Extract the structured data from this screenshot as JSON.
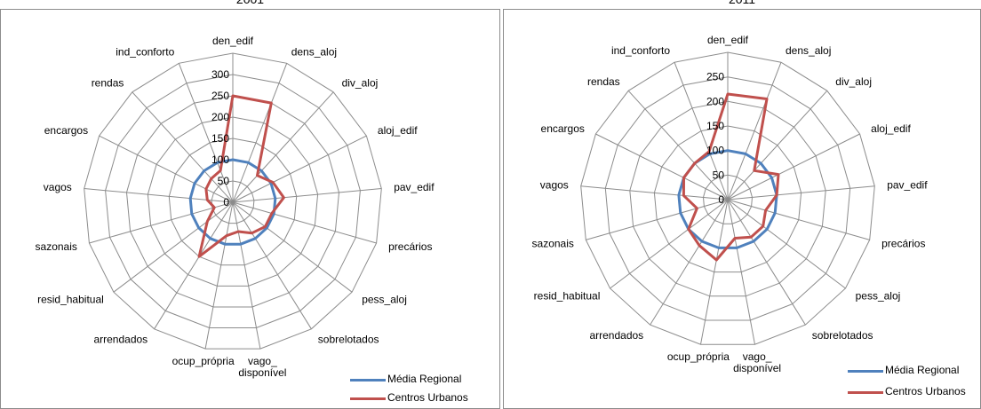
{
  "chart_data": [
    {
      "type": "radar",
      "title": "2001",
      "categories": [
        "den_edif",
        "dens_aloj",
        "div_aloj",
        "aloj_edif",
        "pav_edif",
        "precários",
        "pess_aloj",
        "sobrelotados",
        "vago_ disponível",
        "ocup_própria",
        "arrendados",
        "resid_habitual",
        "sazonais",
        "vagos",
        "encargos",
        "rendas",
        "ind_conforto"
      ],
      "ticks": [
        "0",
        "50",
        "100",
        "150",
        "200",
        "250",
        "300"
      ],
      "rmax": 300,
      "series": [
        {
          "name": "Média Regional",
          "color": "#4f81bd",
          "values": [
            100,
            100,
            100,
            100,
            100,
            100,
            100,
            100,
            100,
            100,
            100,
            100,
            100,
            100,
            100,
            100,
            100
          ]
        },
        {
          "name": "Centros Urbanos",
          "color": "#c0504d",
          "values": [
            250,
            250,
            85,
            105,
            120,
            95,
            95,
            85,
            70,
            80,
            150,
            75,
            45,
            60,
            70,
            75,
            80
          ]
        }
      ],
      "legend_position": "bottom-right"
    },
    {
      "type": "radar",
      "title": "2011",
      "categories": [
        "den_edif",
        "dens_aloj",
        "div_aloj",
        "aloj_edif",
        "pav_edif",
        "precários",
        "pess_aloj",
        "sobrelotados",
        "vago_ disponível",
        "ocup_própria",
        "arrendados",
        "resid_habitual",
        "sazonais",
        "vagos",
        "encargos",
        "rendas",
        "ind_conforto"
      ],
      "ticks": [
        "0",
        "50",
        "100",
        "150",
        "200",
        "250"
      ],
      "rmax": 250,
      "series": [
        {
          "name": "Média Regional",
          "color": "#4f81bd",
          "values": [
            100,
            100,
            100,
            100,
            100,
            100,
            100,
            100,
            100,
            100,
            100,
            100,
            100,
            100,
            100,
            100,
            100
          ]
        },
        {
          "name": "Centros Urbanos",
          "color": "#c0504d",
          "values": [
            215,
            220,
            80,
            115,
            100,
            80,
            90,
            90,
            80,
            125,
            110,
            100,
            65,
            90,
            100,
            100,
            105
          ]
        }
      ],
      "legend_position": "bottom-right"
    }
  ]
}
